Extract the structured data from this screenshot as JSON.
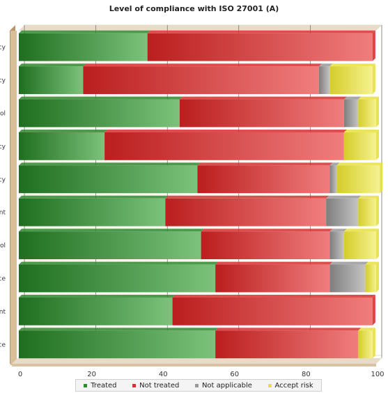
{
  "chart_data": {
    "type": "bar",
    "orientation": "horizontal",
    "stacked": true,
    "title": "Level of compliance with ISO 27001 (A)",
    "xlim": [
      0,
      100
    ],
    "x_ticks": [
      "0",
      "20",
      "40",
      "60",
      "80",
      "100"
    ],
    "grid": true,
    "legend_position": "bottom",
    "category_labels_visible": [
      "cy",
      "cy",
      "ol",
      "cy",
      "cy",
      "nt",
      "ol",
      "ce",
      "nt",
      "ce"
    ],
    "series": [
      {
        "name": "Treated",
        "color": "#2f8a2f",
        "values": [
          36,
          18,
          45,
          24,
          50,
          41,
          51,
          55,
          43,
          55
        ]
      },
      {
        "name": "Not treated",
        "color": "#d63030",
        "values": [
          63,
          66,
          46,
          67,
          37,
          45,
          36,
          32,
          56,
          40
        ]
      },
      {
        "name": "Not applicable",
        "color": "#999999",
        "values": [
          0,
          3,
          4,
          0,
          2,
          9,
          4,
          10,
          0,
          0
        ]
      },
      {
        "name": "Accept risk",
        "color": "#e6e040",
        "values": [
          0,
          12,
          5,
          9,
          12,
          5,
          9,
          3,
          0,
          4
        ]
      }
    ]
  }
}
